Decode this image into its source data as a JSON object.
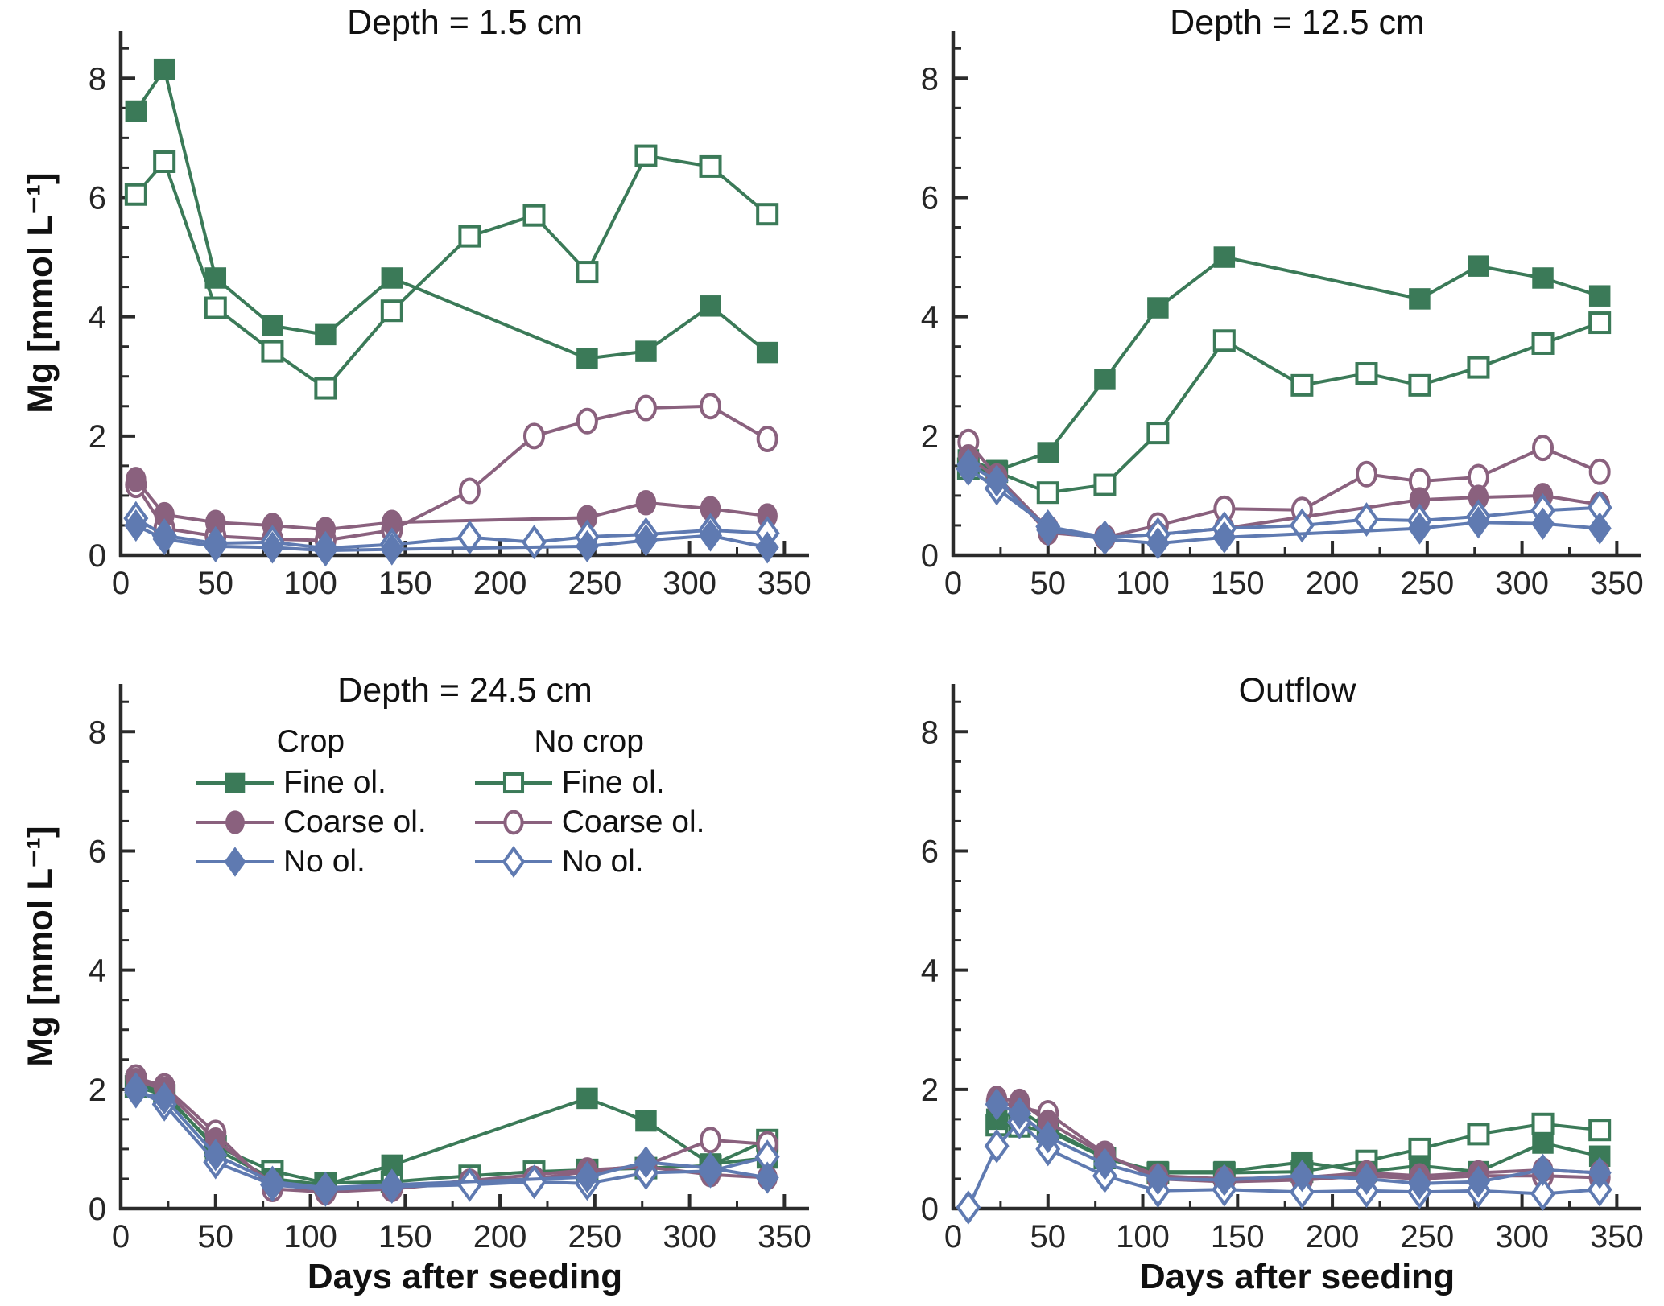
{
  "figure": {
    "ylabel": "Mg [mmol L⁻¹]",
    "xlabel": "Days after seeding",
    "colors": {
      "fine": "#3b7a58",
      "coarse": "#8a617e",
      "no": "#5f7ab1",
      "axis": "#2b2b2b",
      "text": "#262626"
    },
    "axes": {
      "x_minor_step": 25,
      "y_minor_step": 0.5,
      "grid": false
    },
    "legend": {
      "location": "inside bottom-left panel, upper area",
      "columns": [
        {
          "header": "Crop",
          "fill": "filled",
          "items": [
            {
              "label": "Fine ol.",
              "marker": "square",
              "color_key": "fine"
            },
            {
              "label": "Coarse ol.",
              "marker": "circle",
              "color_key": "coarse"
            },
            {
              "label": "No ol.",
              "marker": "diamond",
              "color_key": "no"
            }
          ]
        },
        {
          "header": "No crop",
          "fill": "open",
          "items": [
            {
              "label": "Fine ol.",
              "marker": "square",
              "color_key": "fine"
            },
            {
              "label": "Coarse ol.",
              "marker": "circle",
              "color_key": "coarse"
            },
            {
              "label": "No ol.",
              "marker": "diamond",
              "color_key": "no"
            }
          ]
        }
      ]
    }
  },
  "chart_data": [
    {
      "type": "line",
      "title": "Depth = 1.5 cm",
      "position": "top-left",
      "xlabel": "",
      "ylabel": "Mg [mmol L⁻¹]",
      "xlim": [
        0,
        363
      ],
      "ylim": [
        0,
        8.8
      ],
      "xticks": [
        0,
        50,
        100,
        150,
        200,
        250,
        300,
        350
      ],
      "yticks": [
        0,
        2,
        4,
        6,
        8
      ],
      "series": [
        {
          "name": "No crop Fine ol.",
          "marker": "square",
          "fill": "open",
          "color_key": "fine",
          "x": [
            8,
            23,
            50,
            80,
            108,
            143,
            184,
            218,
            246,
            277,
            311,
            341
          ],
          "y": [
            6.05,
            6.6,
            4.15,
            3.42,
            2.8,
            4.1,
            5.35,
            5.7,
            4.75,
            6.7,
            6.52,
            5.72
          ]
        },
        {
          "name": "Crop Fine ol.",
          "marker": "square",
          "fill": "filled",
          "color_key": "fine",
          "x": [
            8,
            23,
            50,
            80,
            108,
            143,
            246,
            277,
            311,
            341
          ],
          "y": [
            7.45,
            8.15,
            4.65,
            3.85,
            3.7,
            4.65,
            3.3,
            3.42,
            4.18,
            3.4
          ]
        },
        {
          "name": "No crop Coarse ol.",
          "marker": "circle",
          "fill": "open",
          "color_key": "coarse",
          "x": [
            8,
            23,
            50,
            80,
            108,
            143,
            184,
            218,
            246,
            277,
            311,
            341
          ],
          "y": [
            1.18,
            0.45,
            0.32,
            0.27,
            0.25,
            0.42,
            1.08,
            2.0,
            2.25,
            2.47,
            2.5,
            1.95
          ]
        },
        {
          "name": "Crop Coarse ol.",
          "marker": "circle",
          "fill": "filled",
          "color_key": "coarse",
          "x": [
            8,
            23,
            50,
            80,
            108,
            143,
            246,
            277,
            311,
            341
          ],
          "y": [
            1.27,
            0.68,
            0.55,
            0.5,
            0.43,
            0.55,
            0.63,
            0.88,
            0.78,
            0.66
          ]
        },
        {
          "name": "No crop No ol.",
          "marker": "diamond",
          "fill": "open",
          "color_key": "no",
          "x": [
            8,
            23,
            50,
            80,
            108,
            143,
            184,
            218,
            246,
            277,
            311,
            341
          ],
          "y": [
            0.62,
            0.33,
            0.2,
            0.22,
            0.12,
            0.18,
            0.3,
            0.22,
            0.31,
            0.35,
            0.42,
            0.37
          ]
        },
        {
          "name": "Crop No ol.",
          "marker": "diamond",
          "fill": "filled",
          "color_key": "no",
          "x": [
            8,
            23,
            50,
            80,
            108,
            143,
            246,
            277,
            311,
            341
          ],
          "y": [
            0.5,
            0.27,
            0.15,
            0.13,
            0.08,
            0.1,
            0.15,
            0.25,
            0.33,
            0.13
          ]
        }
      ]
    },
    {
      "type": "line",
      "title": "Depth = 12.5 cm",
      "position": "top-right",
      "xlabel": "",
      "ylabel": "",
      "xlim": [
        0,
        363
      ],
      "ylim": [
        0,
        8.8
      ],
      "xticks": [
        0,
        50,
        100,
        150,
        200,
        250,
        300,
        350
      ],
      "yticks": [
        0,
        2,
        4,
        6,
        8
      ],
      "series": [
        {
          "name": "No crop Fine ol.",
          "marker": "square",
          "fill": "open",
          "color_key": "fine",
          "x": [
            8,
            23,
            50,
            80,
            108,
            143,
            184,
            218,
            246,
            277,
            311,
            341
          ],
          "y": [
            1.45,
            1.4,
            1.05,
            1.18,
            2.05,
            3.6,
            2.85,
            3.05,
            2.85,
            3.15,
            3.55,
            3.9
          ]
        },
        {
          "name": "Crop Fine ol.",
          "marker": "square",
          "fill": "filled",
          "color_key": "fine",
          "x": [
            8,
            23,
            50,
            80,
            108,
            143,
            246,
            277,
            311,
            341
          ],
          "y": [
            1.6,
            1.42,
            1.72,
            2.95,
            4.15,
            5.0,
            4.3,
            4.85,
            4.65,
            4.35
          ]
        },
        {
          "name": "No crop Coarse ol.",
          "marker": "circle",
          "fill": "open",
          "color_key": "coarse",
          "x": [
            8,
            23,
            50,
            80,
            108,
            143,
            184,
            218,
            246,
            277,
            311,
            341
          ],
          "y": [
            1.9,
            1.32,
            0.45,
            0.3,
            0.5,
            0.78,
            0.76,
            1.36,
            1.24,
            1.31,
            1.8,
            1.4
          ]
        },
        {
          "name": "Crop Coarse ol.",
          "marker": "circle",
          "fill": "filled",
          "color_key": "coarse",
          "x": [
            8,
            23,
            50,
            80,
            108,
            143,
            246,
            277,
            311,
            341
          ],
          "y": [
            1.65,
            1.3,
            0.38,
            0.3,
            0.35,
            0.45,
            0.93,
            0.97,
            1.0,
            0.85
          ]
        },
        {
          "name": "No crop No ol.",
          "marker": "diamond",
          "fill": "open",
          "color_key": "no",
          "x": [
            8,
            23,
            50,
            80,
            108,
            143,
            184,
            218,
            246,
            277,
            311,
            341
          ],
          "y": [
            1.45,
            1.12,
            0.48,
            0.3,
            0.35,
            0.45,
            0.5,
            0.6,
            0.58,
            0.65,
            0.75,
            0.8
          ]
        },
        {
          "name": "Crop No ol.",
          "marker": "diamond",
          "fill": "filled",
          "color_key": "no",
          "x": [
            8,
            23,
            50,
            80,
            108,
            143,
            246,
            277,
            311,
            341
          ],
          "y": [
            1.52,
            1.25,
            0.42,
            0.27,
            0.2,
            0.3,
            0.45,
            0.55,
            0.53,
            0.45
          ]
        }
      ]
    },
    {
      "type": "line",
      "title": "Depth = 24.5 cm",
      "position": "bottom-left",
      "xlabel": "Days after seeding",
      "ylabel": "Mg [mmol L⁻¹]",
      "xlim": [
        0,
        363
      ],
      "ylim": [
        0,
        8.8
      ],
      "xticks": [
        0,
        50,
        100,
        150,
        200,
        250,
        300,
        350
      ],
      "yticks": [
        0,
        2,
        4,
        6,
        8
      ],
      "series": [
        {
          "name": "No crop Fine ol.",
          "marker": "square",
          "fill": "open",
          "color_key": "fine",
          "x": [
            8,
            23,
            50,
            80,
            108,
            143,
            184,
            218,
            246,
            277,
            311,
            341
          ],
          "y": [
            2.05,
            1.9,
            1.05,
            0.63,
            0.43,
            0.45,
            0.55,
            0.62,
            0.65,
            0.68,
            0.72,
            1.15
          ]
        },
        {
          "name": "Crop Fine ol.",
          "marker": "square",
          "fill": "filled",
          "color_key": "fine",
          "x": [
            8,
            23,
            50,
            80,
            108,
            143,
            246,
            277,
            311,
            341
          ],
          "y": [
            2.1,
            1.95,
            1.0,
            0.5,
            0.4,
            0.73,
            1.85,
            1.47,
            0.75,
            0.85
          ]
        },
        {
          "name": "No crop Coarse ol.",
          "marker": "circle",
          "fill": "open",
          "color_key": "coarse",
          "x": [
            8,
            23,
            50,
            80,
            108,
            143,
            184,
            218,
            246,
            277,
            311,
            341
          ],
          "y": [
            2.2,
            2.05,
            1.27,
            0.33,
            0.28,
            0.33,
            0.45,
            0.5,
            0.62,
            0.73,
            1.15,
            1.08
          ]
        },
        {
          "name": "Crop Coarse ol.",
          "marker": "circle",
          "fill": "filled",
          "color_key": "coarse",
          "x": [
            8,
            23,
            50,
            80,
            108,
            143,
            246,
            277,
            311,
            341
          ],
          "y": [
            2.15,
            2.0,
            1.15,
            0.42,
            0.3,
            0.35,
            0.65,
            0.7,
            0.57,
            0.52
          ]
        },
        {
          "name": "No crop No ol.",
          "marker": "diamond",
          "fill": "open",
          "color_key": "no",
          "x": [
            8,
            23,
            50,
            80,
            108,
            143,
            184,
            218,
            246,
            277,
            311,
            341
          ],
          "y": [
            2.0,
            1.75,
            0.78,
            0.4,
            0.32,
            0.37,
            0.4,
            0.45,
            0.42,
            0.6,
            0.63,
            0.87
          ]
        },
        {
          "name": "Crop No ol.",
          "marker": "diamond",
          "fill": "filled",
          "color_key": "no",
          "x": [
            8,
            23,
            50,
            80,
            108,
            143,
            246,
            277,
            311,
            341
          ],
          "y": [
            1.95,
            1.85,
            0.9,
            0.45,
            0.35,
            0.4,
            0.53,
            0.78,
            0.68,
            0.52
          ]
        }
      ]
    },
    {
      "type": "line",
      "title": "Outflow",
      "position": "bottom-right",
      "xlabel": "Days after seeding",
      "ylabel": "",
      "xlim": [
        0,
        363
      ],
      "ylim": [
        0,
        8.8
      ],
      "xticks": [
        0,
        50,
        100,
        150,
        200,
        250,
        300,
        350
      ],
      "yticks": [
        0,
        2,
        4,
        6,
        8
      ],
      "series": [
        {
          "name": "No crop Fine ol.",
          "marker": "square",
          "fill": "open",
          "color_key": "fine",
          "x": [
            23,
            35,
            50,
            80,
            108,
            143,
            184,
            218,
            246,
            277,
            311,
            341
          ],
          "y": [
            1.4,
            1.38,
            1.3,
            0.85,
            0.6,
            0.6,
            0.62,
            0.8,
            1.0,
            1.25,
            1.42,
            1.32
          ]
        },
        {
          "name": "Crop Fine ol.",
          "marker": "square",
          "fill": "filled",
          "color_key": "fine",
          "x": [
            23,
            35,
            50,
            80,
            108,
            143,
            184,
            218,
            246,
            277,
            311,
            341
          ],
          "y": [
            1.5,
            1.65,
            1.35,
            0.85,
            0.62,
            0.62,
            0.78,
            0.62,
            0.72,
            0.62,
            1.1,
            0.88
          ]
        },
        {
          "name": "No crop Coarse ol.",
          "marker": "circle",
          "fill": "open",
          "color_key": "coarse",
          "x": [
            23,
            35,
            50,
            80,
            108,
            143,
            184,
            218,
            246,
            277,
            311,
            341
          ],
          "y": [
            1.8,
            1.7,
            1.6,
            0.92,
            0.5,
            0.45,
            0.48,
            0.55,
            0.5,
            0.55,
            0.55,
            0.52
          ]
        },
        {
          "name": "Crop Coarse ol.",
          "marker": "circle",
          "fill": "filled",
          "color_key": "coarse",
          "x": [
            23,
            35,
            50,
            80,
            108,
            143,
            184,
            218,
            246,
            277,
            311,
            341
          ],
          "y": [
            1.85,
            1.8,
            1.45,
            0.9,
            0.55,
            0.5,
            0.52,
            0.6,
            0.55,
            0.6,
            0.65,
            0.6
          ]
        },
        {
          "name": "No crop No ol.",
          "marker": "diamond",
          "fill": "open",
          "color_key": "no",
          "x": [
            8,
            23,
            35,
            50,
            80,
            108,
            143,
            184,
            218,
            246,
            277,
            311,
            341
          ],
          "y": [
            0.02,
            1.05,
            1.45,
            1.0,
            0.55,
            0.3,
            0.32,
            0.28,
            0.3,
            0.28,
            0.3,
            0.25,
            0.32
          ]
        },
        {
          "name": "Crop No ol.",
          "marker": "diamond",
          "fill": "filled",
          "color_key": "no",
          "x": [
            23,
            35,
            50,
            80,
            108,
            143,
            184,
            218,
            246,
            277,
            311,
            341
          ],
          "y": [
            1.75,
            1.6,
            1.2,
            0.75,
            0.5,
            0.48,
            0.55,
            0.5,
            0.42,
            0.45,
            0.65,
            0.6
          ]
        }
      ]
    }
  ]
}
